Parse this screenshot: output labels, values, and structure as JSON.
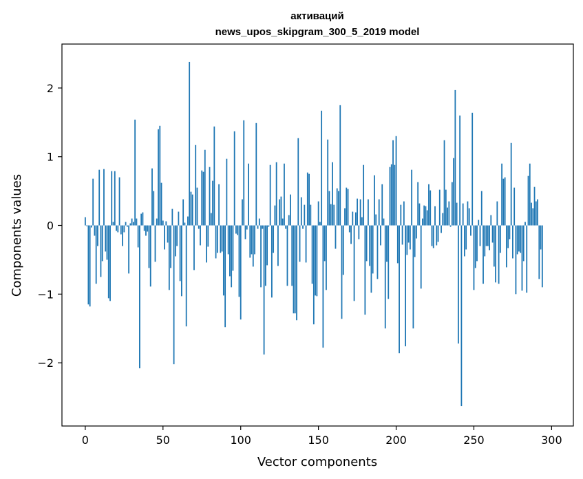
{
  "colors": {
    "bar": "#1f77b4",
    "frame": "#000000",
    "background": "#ffffff"
  },
  "chart_data": {
    "type": "bar",
    "title": [
      "активаций",
      "news_upos_skipgram_300_5_2019 model"
    ],
    "xlabel": "Vector components",
    "ylabel": "Components values",
    "xlim": [
      -15,
      314
    ],
    "ylim": [
      -2.92,
      2.64
    ],
    "xticks": [
      {
        "value": 0,
        "label": "0"
      },
      {
        "value": 50,
        "label": "50"
      },
      {
        "value": 100,
        "label": "100"
      },
      {
        "value": 150,
        "label": "150"
      },
      {
        "value": 200,
        "label": "200"
      },
      {
        "value": 250,
        "label": "250"
      },
      {
        "value": 300,
        "label": "300"
      }
    ],
    "yticks": [
      {
        "value": -2,
        "label": "−2"
      },
      {
        "value": -1,
        "label": "−1"
      },
      {
        "value": 0,
        "label": "0"
      },
      {
        "value": 1,
        "label": "1"
      },
      {
        "value": 2,
        "label": "2"
      }
    ],
    "values": [
      0.12,
      -0.01,
      -1.15,
      -1.18,
      -0.03,
      0.68,
      -0.15,
      -0.85,
      -0.3,
      0.81,
      -0.75,
      -0.52,
      0.82,
      -0.38,
      -0.5,
      -1.06,
      -1.1,
      0.79,
      0.05,
      0.79,
      -0.08,
      -0.1,
      0.7,
      -0.13,
      -0.3,
      -0.1,
      0.05,
      -0.02,
      -0.7,
      0.03,
      0.1,
      0.05,
      1.54,
      0.1,
      -0.32,
      -2.08,
      0.17,
      0.19,
      -0.08,
      -0.15,
      -0.09,
      -0.62,
      -0.89,
      0.83,
      0.5,
      -0.53,
      0.1,
      1.4,
      1.45,
      0.62,
      0.07,
      -0.35,
      0.06,
      -0.25,
      -0.94,
      -0.62,
      0.24,
      -2.02,
      -0.45,
      -0.3,
      0.2,
      -0.81,
      -1.03,
      0.38,
      0.04,
      -1.47,
      0.13,
      2.38,
      0.49,
      0.45,
      -0.65,
      1.17,
      0.55,
      -0.05,
      -0.29,
      0.8,
      0.78,
      1.1,
      -0.54,
      -0.31,
      0.85,
      0.18,
      0.65,
      1.44,
      -0.48,
      -0.4,
      0.6,
      -0.4,
      -0.38,
      -1.02,
      -1.48,
      0.97,
      -0.42,
      -0.74,
      -0.9,
      -0.66,
      1.37,
      -0.12,
      -0.14,
      -1.04,
      -1.37,
      0.38,
      1.53,
      -0.2,
      -0.06,
      0.9,
      -0.47,
      -0.42,
      -0.6,
      -0.42,
      1.49,
      -0.05,
      0.1,
      -0.9,
      -0.05,
      -1.88,
      -0.88,
      -0.58,
      -0.02,
      0.88,
      -1.05,
      -0.4,
      0.29,
      0.92,
      -0.59,
      0.38,
      0.42,
      0.1,
      0.9,
      -0.05,
      -0.88,
      0.15,
      0.45,
      -0.88,
      -1.28,
      -1.28,
      -1.38,
      1.27,
      -0.53,
      0.41,
      -0.05,
      0.3,
      -0.54,
      0.77,
      0.75,
      0.3,
      -0.85,
      -1.44,
      -1.02,
      -1.03,
      0.35,
      0.05,
      1.67,
      -1.78,
      -0.52,
      -0.94,
      1.25,
      0.5,
      0.31,
      0.92,
      0.3,
      -0.34,
      0.54,
      0.5,
      1.75,
      -1.36,
      -0.72,
      0.25,
      0.55,
      0.53,
      -0.1,
      -0.27,
      0.2,
      -1.1,
      0.19,
      0.39,
      -0.2,
      0.38,
      0.12,
      0.88,
      -1.3,
      -0.52,
      0.38,
      -0.59,
      -0.98,
      -0.7,
      0.73,
      0.16,
      -0.78,
      0.38,
      -0.29,
      0.6,
      0.1,
      -1.5,
      -0.53,
      -1.07,
      0.85,
      0.89,
      1.24,
      0.88,
      1.3,
      -0.55,
      -1.86,
      0.3,
      -0.28,
      0.35,
      -1.76,
      -0.43,
      -0.25,
      -0.35,
      0.81,
      -1.5,
      -0.46,
      -0.19,
      0.63,
      0.32,
      -0.92,
      0.1,
      0.29,
      0.28,
      0.22,
      0.6,
      0.51,
      -0.3,
      -0.33,
      0.28,
      -0.29,
      -0.24,
      0.52,
      -0.11,
      0.18,
      1.24,
      0.52,
      0.26,
      0.35,
      -0.02,
      0.63,
      0.98,
      1.97,
      0.33,
      -1.72,
      1.6,
      -2.63,
      0.32,
      -0.45,
      -0.35,
      0.35,
      0.25,
      -0.15,
      1.64,
      -0.94,
      -0.62,
      -0.52,
      0.08,
      -0.3,
      0.5,
      -0.85,
      -0.45,
      -0.3,
      -0.3,
      -0.36,
      0.15,
      -0.25,
      -0.6,
      -0.83,
      0.35,
      -0.85,
      -0.4,
      0.9,
      0.68,
      0.7,
      -0.61,
      -0.33,
      -0.2,
      1.2,
      -0.48,
      0.55,
      -1.0,
      -0.42,
      -0.38,
      -0.4,
      -0.95,
      -0.52,
      0.05,
      -0.98,
      0.72,
      0.9,
      0.33,
      0.25,
      0.56,
      0.35,
      0.38,
      -0.78,
      -0.35,
      -0.9
    ]
  }
}
